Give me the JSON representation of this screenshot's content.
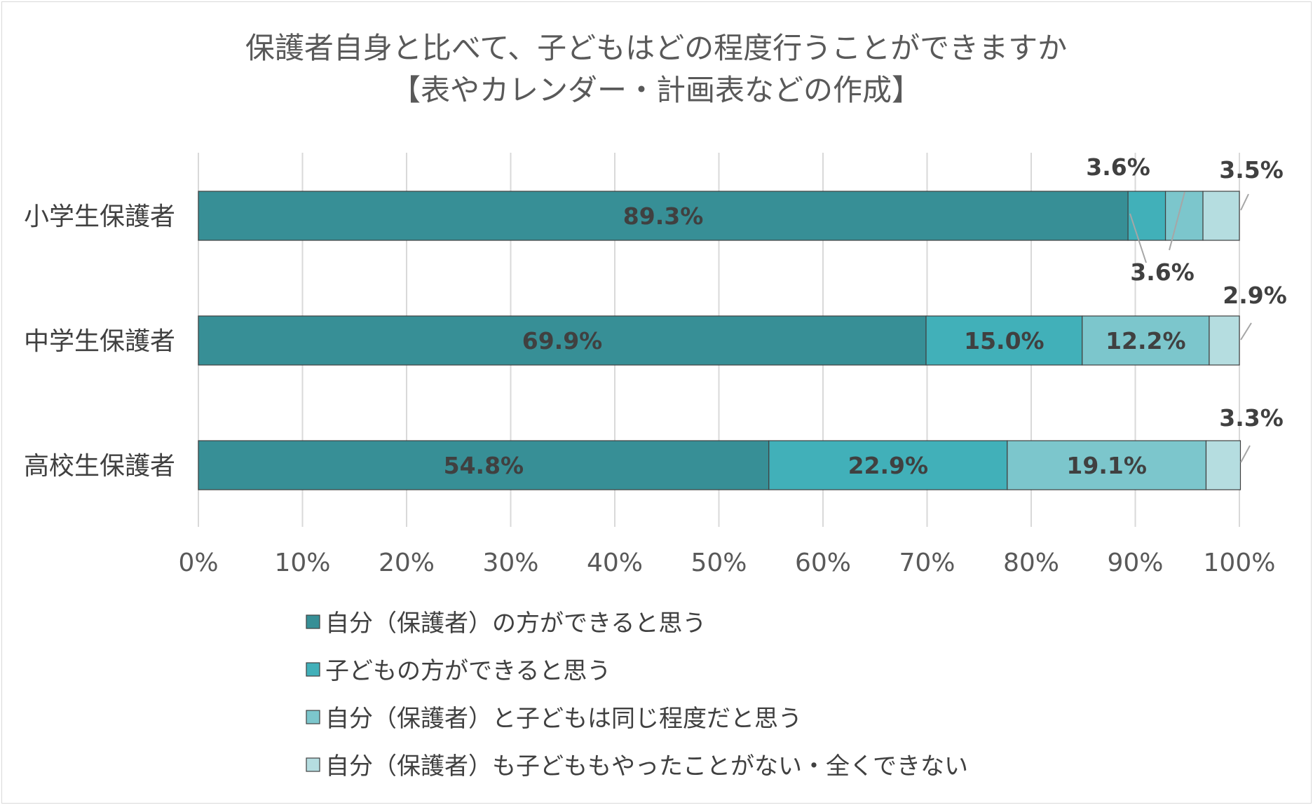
{
  "chart_data": {
    "type": "bar",
    "orientation": "horizontal",
    "stacked": true,
    "title_lines": [
      "保護者自身と比べて、子どもはどの程度行うことができますか",
      "【表やカレンダー・計画表などの作成】"
    ],
    "categories": [
      "小学生保護者",
      "中学生保護者",
      "高校生保護者"
    ],
    "series": [
      {
        "name": "自分（保護者）の方ができると思う",
        "color": "#378f96",
        "values": [
          89.3,
          69.9,
          54.8
        ]
      },
      {
        "name": "子どもの方ができると思う",
        "color": "#41b0b9",
        "values": [
          3.6,
          15.0,
          22.9
        ]
      },
      {
        "name": "自分（保護者）と子どもは同じ程度だと思う",
        "color": "#7cc6cc",
        "values": [
          3.6,
          12.2,
          19.1
        ]
      },
      {
        "name": "自分（保護者）も子どももやったことがない・全くできない",
        "color": "#b5dde0",
        "values": [
          3.5,
          2.9,
          3.3
        ]
      }
    ],
    "value_labels": [
      [
        "89.3%",
        "3.6%",
        "3.6%",
        "3.5%"
      ],
      [
        "69.9%",
        "15.0%",
        "12.2%",
        "2.9%"
      ],
      [
        "54.8%",
        "22.9%",
        "19.1%",
        "3.3%"
      ]
    ],
    "x_ticks": [
      "0%",
      "10%",
      "20%",
      "30%",
      "40%",
      "50%",
      "60%",
      "70%",
      "80%",
      "90%",
      "100%"
    ],
    "xlim": [
      0,
      100
    ],
    "grid": true,
    "legend_position": "bottom"
  }
}
